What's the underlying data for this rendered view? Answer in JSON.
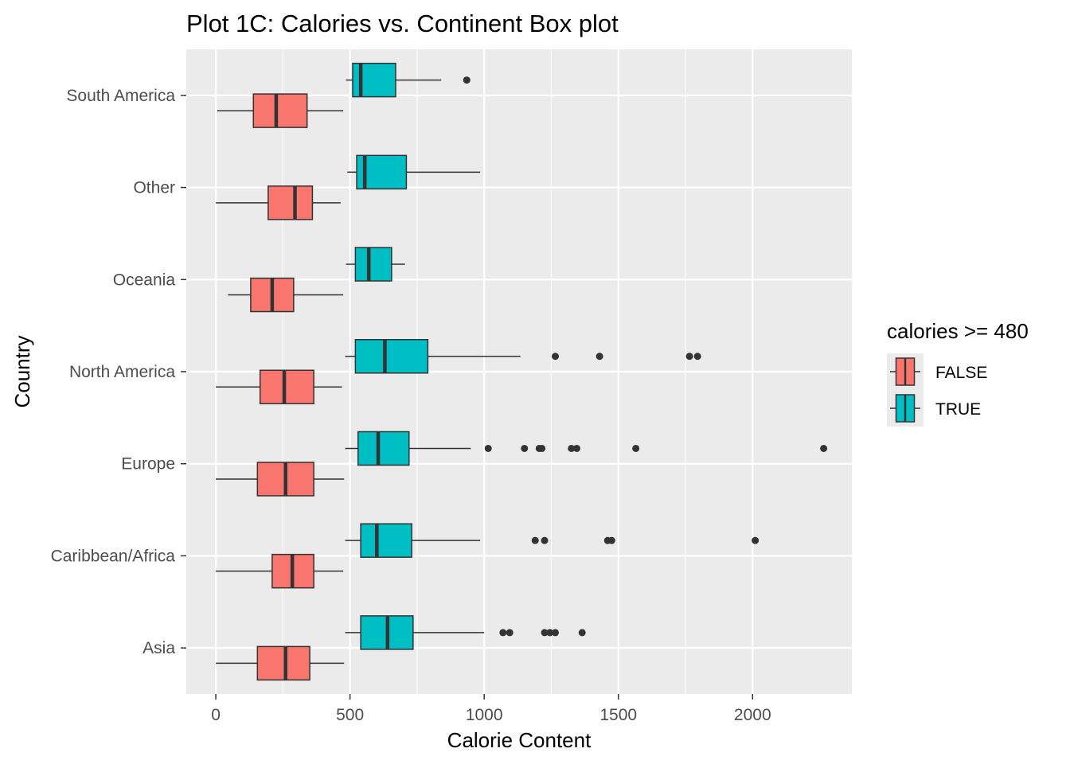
{
  "chart_data": {
    "type": "boxplot",
    "orientation": "horizontal",
    "title": "Plot 1C: Calories vs. Continent Box plot",
    "xlabel": "Calorie Content",
    "ylabel": "Country",
    "xlim": [
      -110,
      2370
    ],
    "xticks": [
      0,
      500,
      1000,
      1500,
      2000
    ],
    "xtick_labels": [
      "0",
      "500",
      "1000",
      "1500",
      "2000"
    ],
    "grid": true,
    "categories": [
      "Asia",
      "Caribbean/Africa",
      "Europe",
      "North America",
      "Oceania",
      "Other",
      "South America"
    ],
    "legend": {
      "title": "calories >= 480",
      "position": "right",
      "entries": [
        {
          "label": "FALSE",
          "color": "#F8766D"
        },
        {
          "label": "TRUE",
          "color": "#00BFC4"
        }
      ]
    },
    "series": [
      {
        "name": "FALSE",
        "color": "#F8766D",
        "boxes": [
          {
            "category": "Asia",
            "whisker_low": 0,
            "q1": 155,
            "median": 260,
            "q3": 350,
            "whisker_high": 478,
            "outliers": []
          },
          {
            "category": "Caribbean/Africa",
            "whisker_low": 0,
            "q1": 210,
            "median": 285,
            "q3": 365,
            "whisker_high": 475,
            "outliers": []
          },
          {
            "category": "Europe",
            "whisker_low": 0,
            "q1": 155,
            "median": 260,
            "q3": 365,
            "whisker_high": 478,
            "outliers": []
          },
          {
            "category": "North America",
            "whisker_low": 0,
            "q1": 165,
            "median": 255,
            "q3": 365,
            "whisker_high": 470,
            "outliers": []
          },
          {
            "category": "Oceania",
            "whisker_low": 45,
            "q1": 130,
            "median": 210,
            "q3": 290,
            "whisker_high": 475,
            "outliers": []
          },
          {
            "category": "Other",
            "whisker_low": 0,
            "q1": 195,
            "median": 295,
            "q3": 360,
            "whisker_high": 465,
            "outliers": []
          },
          {
            "category": "South America",
            "whisker_low": 5,
            "q1": 140,
            "median": 225,
            "q3": 340,
            "whisker_high": 475,
            "outliers": []
          }
        ]
      },
      {
        "name": "TRUE",
        "color": "#00BFC4",
        "boxes": [
          {
            "category": "Asia",
            "whisker_low": 482,
            "q1": 540,
            "median": 640,
            "q3": 735,
            "whisker_high": 1000,
            "outliers": [
              1070,
              1095,
              1225,
              1245,
              1265,
              1365
            ]
          },
          {
            "category": "Caribbean/Africa",
            "whisker_low": 482,
            "q1": 540,
            "median": 600,
            "q3": 730,
            "whisker_high": 985,
            "outliers": [
              1190,
              1225,
              1460,
              1475,
              2010
            ]
          },
          {
            "category": "Europe",
            "whisker_low": 482,
            "q1": 530,
            "median": 605,
            "q3": 720,
            "whisker_high": 950,
            "outliers": [
              1015,
              1150,
              1205,
              1215,
              1325,
              1345,
              1565,
              2265
            ]
          },
          {
            "category": "North America",
            "whisker_low": 482,
            "q1": 520,
            "median": 630,
            "q3": 790,
            "whisker_high": 1135,
            "outliers": [
              1265,
              1430,
              1765,
              1795
            ]
          },
          {
            "category": "Oceania",
            "whisker_low": 485,
            "q1": 520,
            "median": 570,
            "q3": 655,
            "whisker_high": 705,
            "outliers": []
          },
          {
            "category": "Other",
            "whisker_low": 490,
            "q1": 525,
            "median": 555,
            "q3": 710,
            "whisker_high": 985,
            "outliers": []
          },
          {
            "category": "South America",
            "whisker_low": 485,
            "q1": 510,
            "median": 540,
            "q3": 670,
            "whisker_high": 840,
            "outliers": [
              935
            ]
          }
        ]
      }
    ]
  }
}
